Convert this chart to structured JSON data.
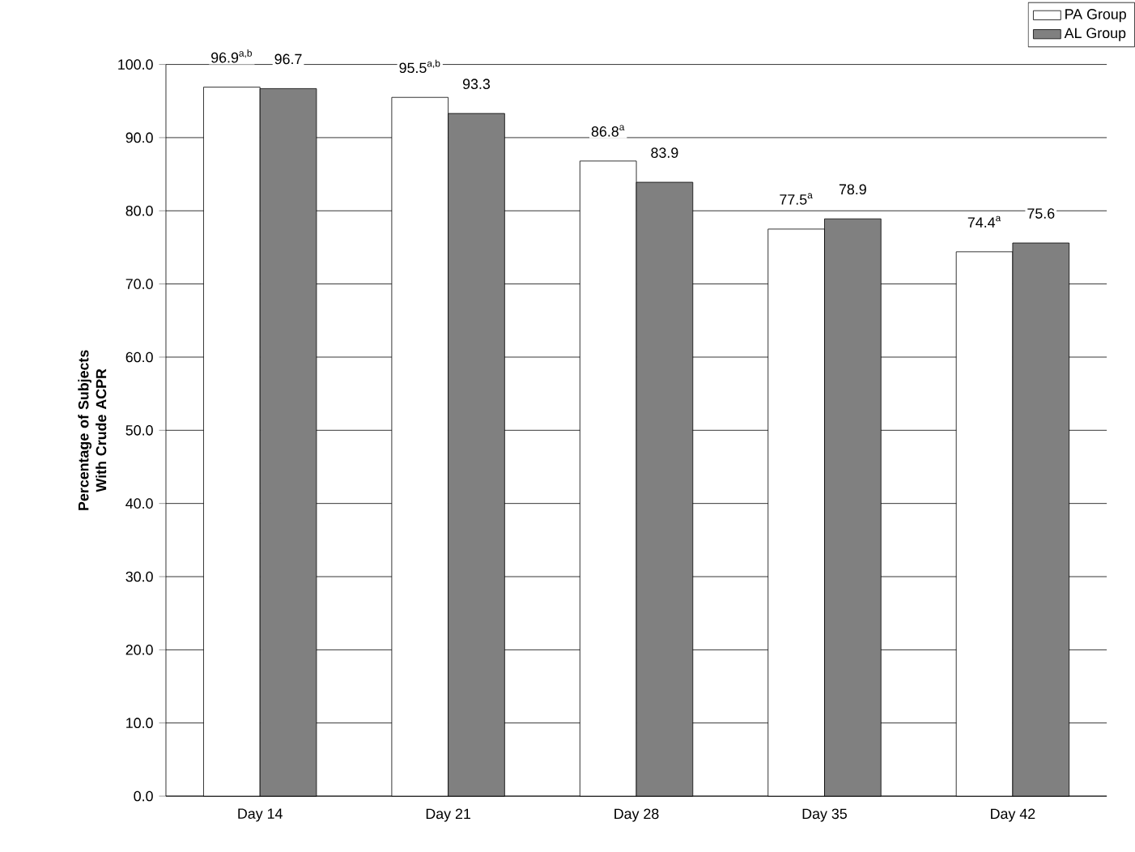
{
  "chart_data": {
    "type": "bar",
    "ylabel": "Percentage of Subjects With Crude ACPR",
    "categories": [
      "Day 14",
      "Day 21",
      "Day 28",
      "Day 35",
      "Day 42"
    ],
    "series": [
      {
        "name": "PA Group",
        "color": "#ffffff",
        "values": [
          96.9,
          95.5,
          86.8,
          77.5,
          74.4
        ],
        "value_labels": [
          "96.9$^{a,b}$",
          "95.5$^{a,b}$",
          "86.8$^{a}$",
          "77.5$^{a}$",
          "74.4$^{a}$"
        ]
      },
      {
        "name": "AL Group",
        "color": "#808080",
        "values": [
          96.7,
          93.3,
          83.9,
          78.9,
          75.6
        ],
        "value_labels": [
          "96.7",
          "93.3",
          "83.9",
          "78.9",
          "75.6"
        ]
      }
    ],
    "ylim": [
      0,
      100
    ],
    "yticks": [
      {
        "value": 0,
        "label": "0.0"
      },
      {
        "value": 10,
        "label": "10.0"
      },
      {
        "value": 20,
        "label": "20.0"
      },
      {
        "value": 30,
        "label": "30.0"
      },
      {
        "value": 40,
        "label": "40.0"
      },
      {
        "value": 50,
        "label": "50.0"
      },
      {
        "value": 60,
        "label": "60.0"
      },
      {
        "value": 70,
        "label": "70.0"
      },
      {
        "value": 80,
        "label": "80.0"
      },
      {
        "value": 90,
        "label": "90.0"
      },
      {
        "value": 100,
        "label": "100.0"
      }
    ],
    "grid": "y",
    "legend": "top right"
  }
}
